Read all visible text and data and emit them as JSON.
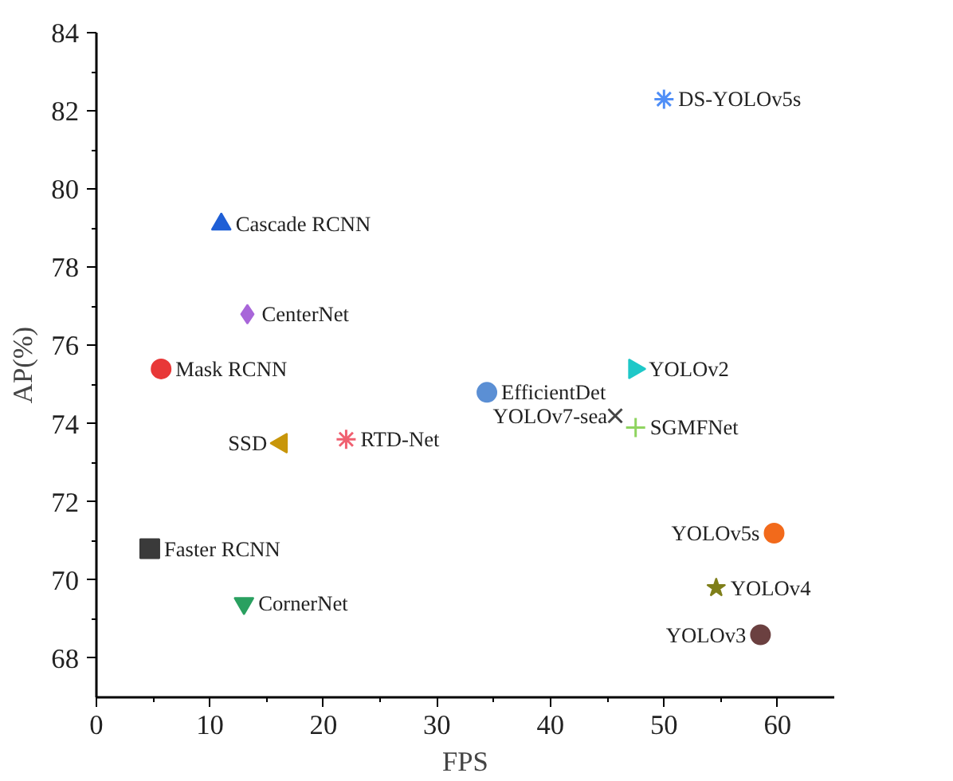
{
  "chart_data": {
    "type": "scatter",
    "xlabel": "FPS",
    "ylabel": "AP(%)",
    "xlim": [
      0,
      65
    ],
    "ylim": [
      67,
      84
    ],
    "xticks": [
      0,
      10,
      20,
      30,
      40,
      50,
      60
    ],
    "yticks": [
      68,
      70,
      72,
      74,
      76,
      78,
      80,
      82,
      84
    ],
    "grid": false,
    "series": [
      {
        "name": "DS-YOLOv5s",
        "color": "#4f8ef7",
        "marker": "cross",
        "x": [
          50
        ],
        "values": [
          82.3
        ]
      },
      {
        "name": "Cascade RCNN",
        "color": "#1f5fd6",
        "marker": "triangle",
        "x": [
          11
        ],
        "values": [
          79.1
        ]
      },
      {
        "name": "CenterNet",
        "color": "#a866d9",
        "marker": "diamond",
        "x": [
          13.3
        ],
        "values": [
          76.8
        ]
      },
      {
        "name": "Mask RCNN",
        "color": "#e83838",
        "marker": "circle",
        "x": [
          5.7
        ],
        "values": [
          75.4
        ]
      },
      {
        "name": "YOLOv2",
        "color": "#1ec8c8",
        "marker": "triangle",
        "x": [
          47.4
        ],
        "values": [
          75.4
        ]
      },
      {
        "name": "EfficientDet",
        "color": "#5b8fd4",
        "marker": "circle",
        "x": [
          34.4
        ],
        "values": [
          74.8
        ]
      },
      {
        "name": "YOLOv7-sea",
        "color": "#444444",
        "marker": "cross",
        "x": [
          45.7
        ],
        "values": [
          74.2
        ]
      },
      {
        "name": "SGMFNet",
        "color": "#8fd460",
        "marker": "cross",
        "x": [
          47.5
        ],
        "values": [
          73.9
        ]
      },
      {
        "name": "SSD",
        "color": "#c8960a",
        "marker": "triangle",
        "x": [
          16.3
        ],
        "values": [
          73.5
        ]
      },
      {
        "name": "RTD-Net",
        "color": "#f06070",
        "marker": "cross",
        "x": [
          22
        ],
        "values": [
          73.6
        ]
      },
      {
        "name": "YOLOv5s",
        "color": "#f26a1b",
        "marker": "circle",
        "x": [
          59.7
        ],
        "values": [
          71.2
        ]
      },
      {
        "name": "Faster RCNN",
        "color": "#3a3a3a",
        "marker": "square",
        "x": [
          4.7
        ],
        "values": [
          70.8
        ]
      },
      {
        "name": "YOLOv4",
        "color": "#7f7f1a",
        "marker": "star",
        "x": [
          54.6
        ],
        "values": [
          69.8
        ]
      },
      {
        "name": "CornerNet",
        "color": "#2aa060",
        "marker": "triangle",
        "x": [
          13
        ],
        "values": [
          69.4
        ]
      },
      {
        "name": "YOLOv3",
        "color": "#6b4040",
        "marker": "circle",
        "x": [
          58.5
        ],
        "values": [
          68.6
        ]
      }
    ]
  }
}
